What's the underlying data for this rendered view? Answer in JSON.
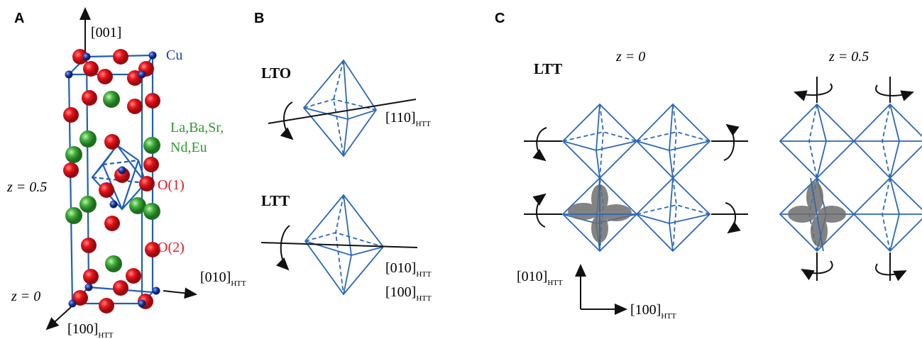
{
  "panel_a": {
    "label": "A",
    "axis_001": "[001]",
    "cu": "Cu",
    "la_line1": "La,Ba,Sr,",
    "la_line2": "Nd,Eu",
    "z_half": "z = 0.5",
    "o1": "O(1)",
    "o2": "O(2)",
    "axis_010": {
      "main": "[010]",
      "sub": "HTT"
    },
    "z_zero": "z = 0",
    "axis_100": {
      "main": "[100]",
      "sub": "HTT"
    }
  },
  "panel_b": {
    "label": "B",
    "lto": "LTO",
    "lto_axis": {
      "main": "[110]",
      "sub": "HTT"
    },
    "ltt": "LTT",
    "ltt_axis1": {
      "main": "[010]",
      "sub": "HTT"
    },
    "ltt_axis2": {
      "main": "[100]",
      "sub": "HTT"
    }
  },
  "panel_c": {
    "label": "C",
    "ltt": "LTT",
    "z_zero": "z = 0",
    "z_half": "z = 0.5",
    "axis_010": {
      "main": "[010]",
      "sub": "HTT"
    },
    "axis_100": {
      "main": "[100]",
      "sub": "HTT"
    }
  }
}
